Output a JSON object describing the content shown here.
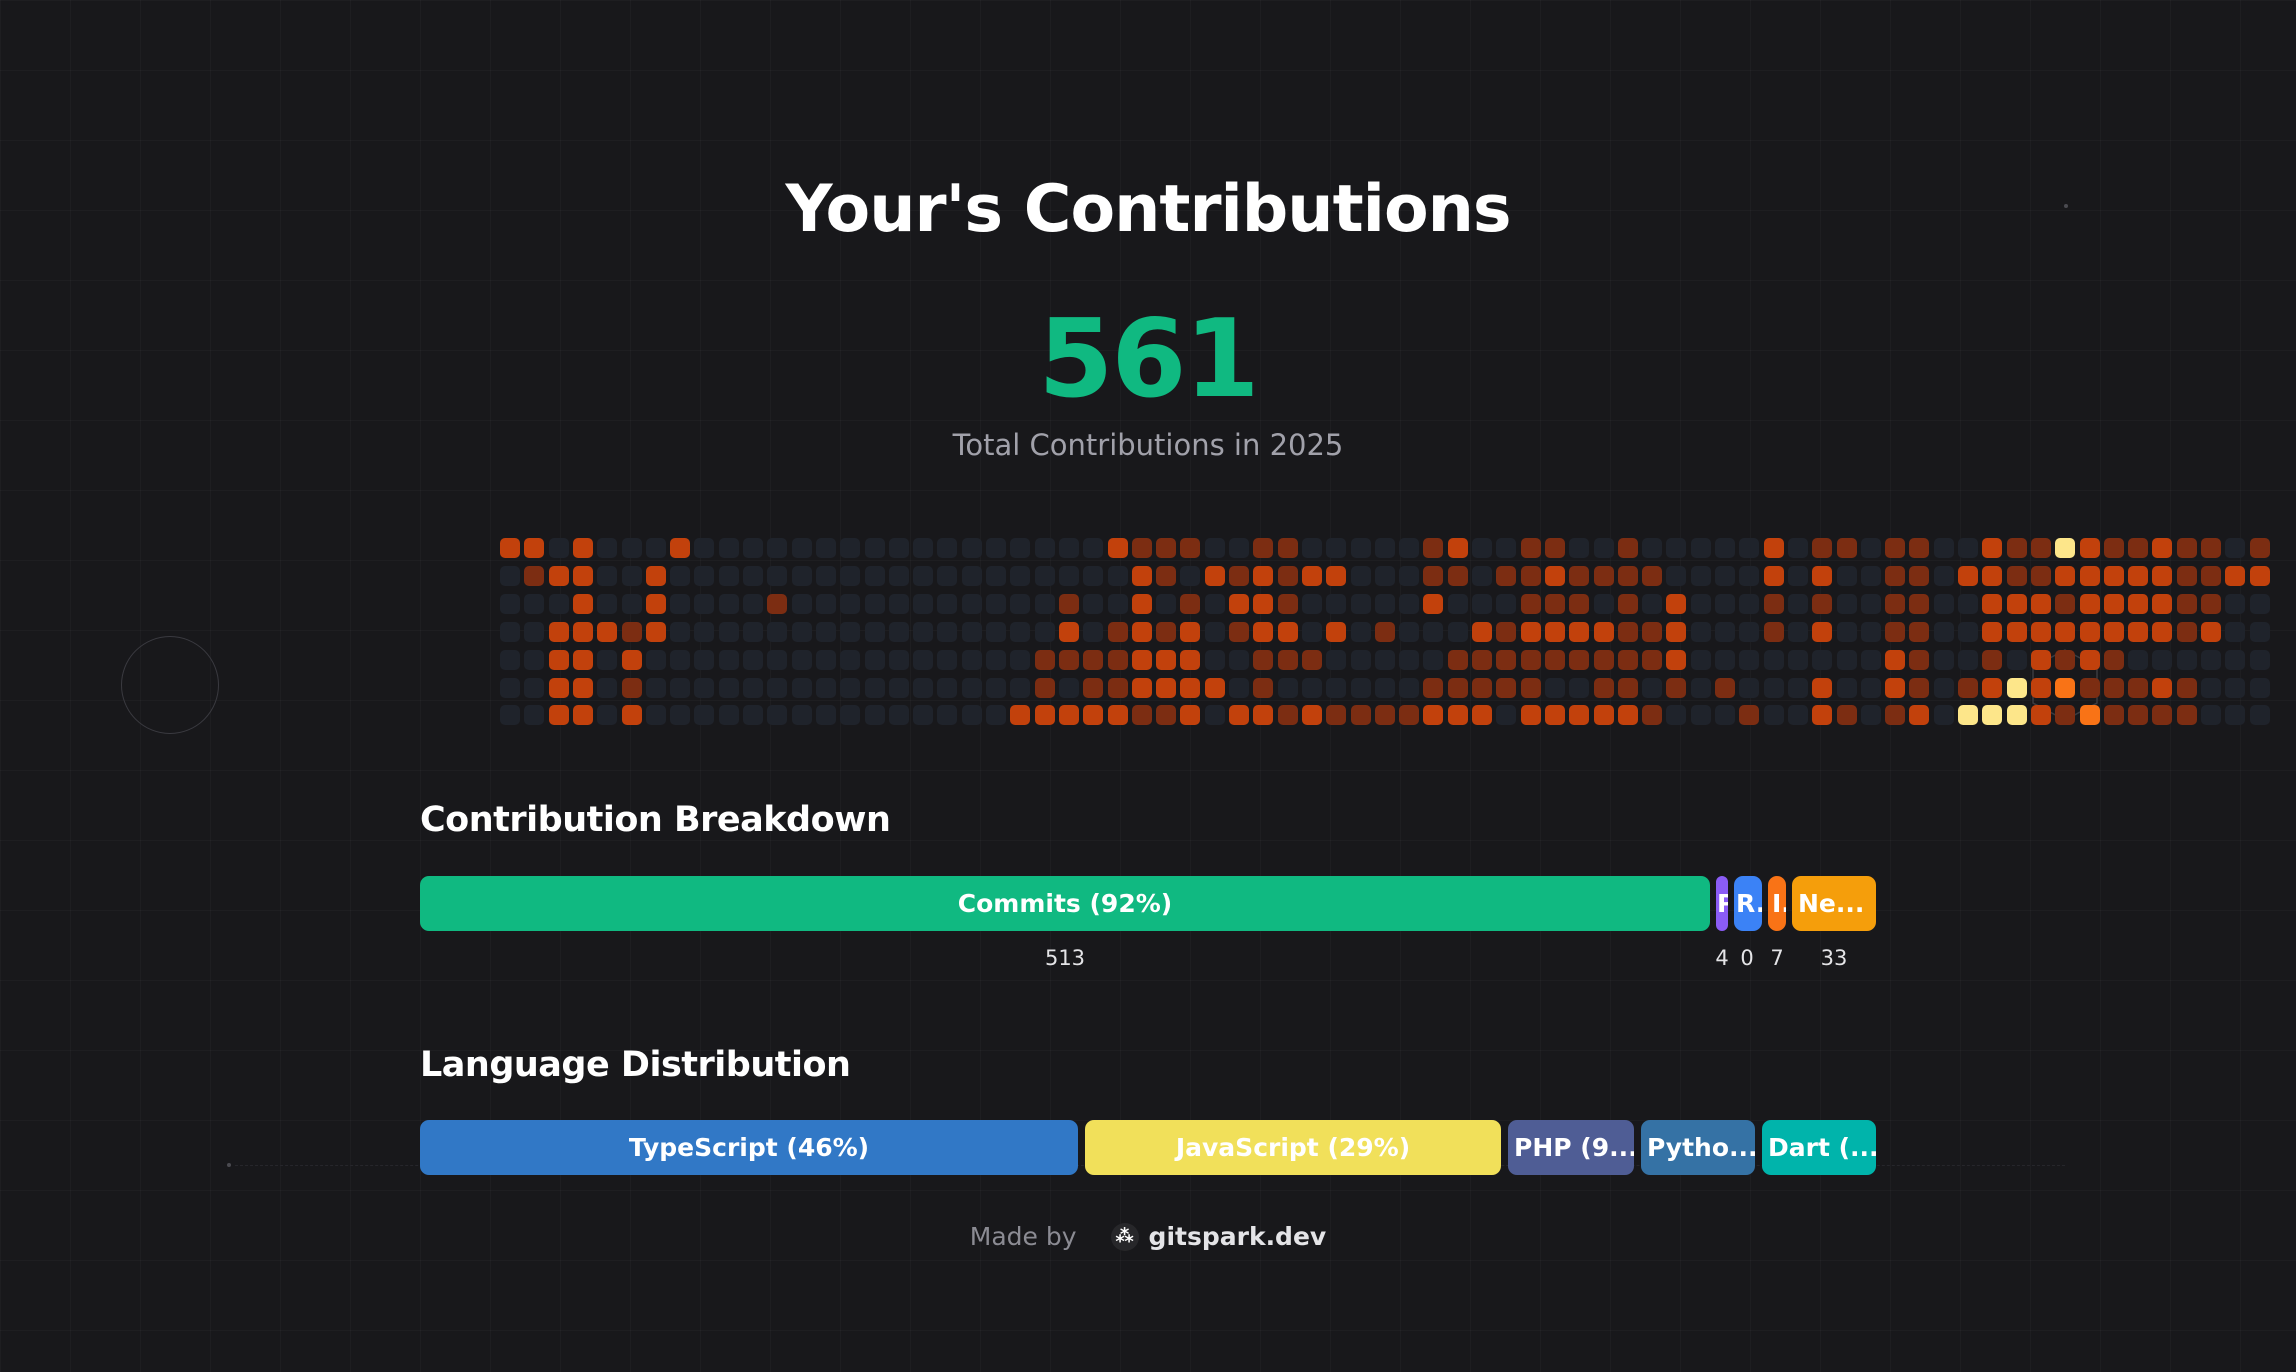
{
  "header": {
    "title": "Your's Contributions",
    "total": "561",
    "total_label": "Total Contributions in 2025"
  },
  "heatmap": {
    "palette": {
      "0": "#1f232b",
      "1": "#7c2d12",
      "2": "#c2410c",
      "3": "#f97316",
      "4": "#fde68a"
    },
    "weeks": [
      "2000000",
      "2100000",
      "0202222",
      "2222222",
      "0002000",
      "0001212",
      "0222000",
      "2000000",
      "0000000",
      "0000000",
      "0000000",
      "0010000",
      "0000000",
      "0000000",
      "0000000",
      "0000000",
      "0000000",
      "0000000",
      "0000000",
      "0000000",
      "0000000",
      "0000002",
      "0000112",
      "0012102",
      "0000112",
      "2001112",
      "1222221",
      "1101221",
      "1012222",
      "0200020",
      "0121002",
      "1222112",
      "1112101",
      "0200102",
      "0202001",
      "0000001",
      "0001001",
      "0000001",
      "1120012",
      "2100112",
      "0002112",
      "0101110",
      "1112112",
      "1212102",
      "0112102",
      "0102112",
      "1111112",
      "0101101",
      "0022210",
      "0000000",
      "0000010",
      "0000001",
      "2211000",
      "0000000",
      "1212022",
      "1000001",
      "0000000",
      "1111221",
      "1111112",
      "0000000",
      "0200014",
      "2222124",
      "1122044",
      "1122222",
      "4212131",
      "2222213",
      "1222111",
      "1222011",
      "2222021",
      "1111011",
      "1112000",
      "0200000",
      "1200000"
    ]
  },
  "breakdown": {
    "title": "Contribution Breakdown",
    "segments": [
      {
        "label": "Commits (92%)",
        "count": "513",
        "color": "#10b981"
      },
      {
        "label": "P",
        "count": "4",
        "color": "#8b5cf6"
      },
      {
        "label": "R...",
        "count": "0",
        "color": "#3b82f6"
      },
      {
        "label": "I...",
        "count": "7",
        "color": "#f97316"
      },
      {
        "label": "Ne...",
        "count": "33",
        "color": "#f59e0b"
      }
    ]
  },
  "languages": {
    "title": "Language Distribution",
    "segments": [
      {
        "label": "TypeScript (46%)",
        "color": "#3178c6"
      },
      {
        "label": "JavaScript (29%)",
        "color": "#f1e05a"
      },
      {
        "label": "PHP (9...",
        "color": "#4f5d95"
      },
      {
        "label": "Pytho...",
        "color": "#3572a5"
      },
      {
        "label": "Dart (...",
        "color": "#00b4ab"
      }
    ]
  },
  "footer": {
    "made_by": "Made by",
    "brand": "gitspark.dev",
    "brand_icon": "spark-icon"
  }
}
